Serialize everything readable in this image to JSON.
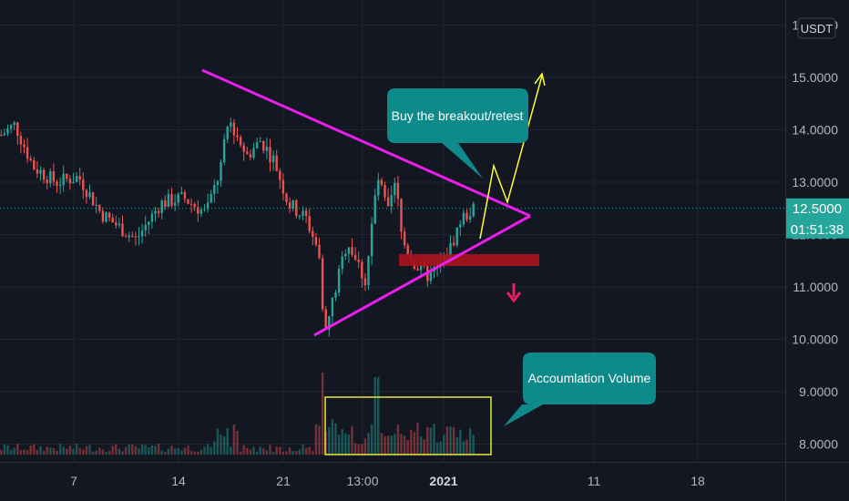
{
  "chart_data": {
    "type": "candlestick",
    "currency": "USDT",
    "y_ticks": [
      "16.0000",
      "15.0000",
      "14.0000",
      "13.0000",
      "12.0000",
      "11.0000",
      "10.0000",
      "9.0000",
      "8.0000"
    ],
    "y_tick_values": [
      16,
      15,
      14,
      13,
      12,
      11,
      10,
      9,
      8
    ],
    "ylim": [
      7.4,
      16.1
    ],
    "x_ticks": [
      "7",
      "14",
      "21",
      "13:00",
      "2021",
      "11",
      "18"
    ],
    "last_price": "12.5000",
    "last_price_value": 12.5,
    "countdown": "01:51:38",
    "grid": true,
    "annotations": {
      "breakout": "Buy the breakout/retest",
      "volume": "Accoumlation Volume"
    },
    "colors": {
      "background": "#131722",
      "up": "#26a69a",
      "down": "#ef5350",
      "triangle": "#e91eed",
      "path": "#ffff33",
      "callout": "#0e8a8a",
      "support_zone": "#a8141d",
      "down_arrow": "#e91e63",
      "volume_box": "#e8e83a"
    }
  }
}
